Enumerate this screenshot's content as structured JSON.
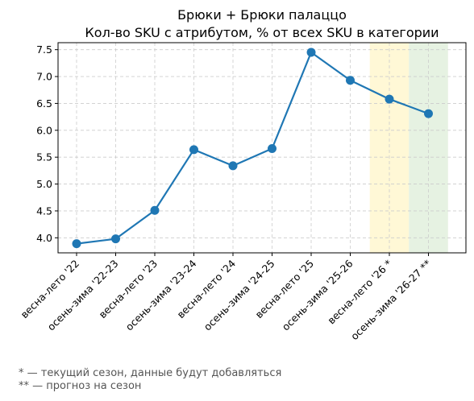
{
  "chart_data": {
    "type": "line",
    "title": "Брюки + Брюки палаццо",
    "subtitle": "Кол-во SKU с атрибутом, % от всех SKU в категории",
    "categories": [
      "весна-лето '22",
      "осень-зима '22-23",
      "весна-лето '23",
      "осень-зима '23-24",
      "весна-лето '24",
      "осень-зима '24-25",
      "весна-лето '25",
      "осень-зима '25-26",
      "весна-лето '26 *",
      "осень-зима '26-27 **"
    ],
    "values": [
      3.89,
      3.98,
      4.51,
      5.64,
      5.34,
      5.66,
      7.45,
      6.93,
      6.58,
      6.31
    ],
    "yticks": [
      "4.0",
      "4.5",
      "5.0",
      "5.5",
      "6.0",
      "6.5",
      "7.0",
      "7.5"
    ],
    "ylim": [
      3.72,
      7.63
    ],
    "grid": true,
    "line_color": "#1f77b4",
    "highlight_current": {
      "category_index": 8,
      "color": "#fff8d6"
    },
    "highlight_forecast": {
      "category_index": 9,
      "color": "#e6f2e2"
    }
  },
  "footnotes": [
    "* — текущий сезон, данные будут добавляться",
    "** — прогноз на сезон"
  ]
}
